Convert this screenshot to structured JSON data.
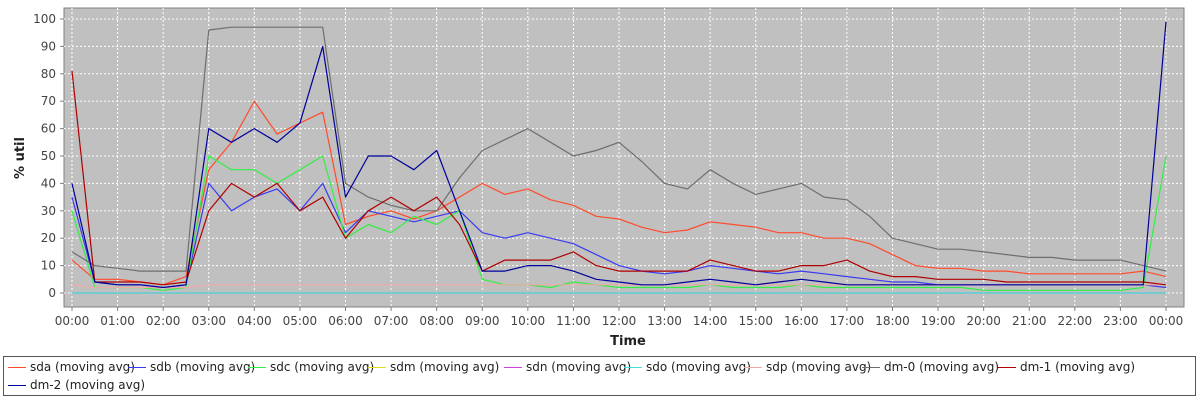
{
  "chart_data": {
    "type": "line",
    "title": "",
    "xlabel": "Time",
    "ylabel": "% util",
    "ylim": [
      0,
      100
    ],
    "yticks": [
      0,
      10,
      20,
      30,
      40,
      50,
      60,
      70,
      80,
      90,
      100
    ],
    "xlim": [
      "00:00",
      "24:00"
    ],
    "x_tick_labels": [
      "00:00",
      "01:00",
      "02:00",
      "03:00",
      "04:00",
      "05:00",
      "06:00",
      "07:00",
      "08:00",
      "09:00",
      "10:00",
      "11:00",
      "12:00",
      "13:00",
      "14:00",
      "15:00",
      "16:00",
      "17:00",
      "18:00",
      "19:00",
      "20:00",
      "21:00",
      "22:00",
      "23:00",
      "00:00"
    ],
    "grid": true,
    "legend_position": "bottom",
    "x": [
      "00:00",
      "00:30",
      "01:00",
      "01:30",
      "02:00",
      "02:30",
      "03:00",
      "03:30",
      "04:00",
      "04:30",
      "05:00",
      "05:30",
      "06:00",
      "06:30",
      "07:00",
      "07:30",
      "08:00",
      "08:30",
      "09:00",
      "09:30",
      "10:00",
      "10:30",
      "11:00",
      "11:30",
      "12:00",
      "12:30",
      "13:00",
      "13:30",
      "14:00",
      "14:30",
      "15:00",
      "15:30",
      "16:00",
      "16:30",
      "17:00",
      "17:30",
      "18:00",
      "18:30",
      "19:00",
      "19:30",
      "20:00",
      "20:30",
      "21:00",
      "21:30",
      "22:00",
      "22:30",
      "23:00",
      "23:30",
      "24:00"
    ],
    "series": [
      {
        "name": "sda (moving avg)",
        "color": "#ff4b2b",
        "values": [
          12,
          5,
          5,
          4,
          3,
          6,
          45,
          55,
          70,
          58,
          62,
          66,
          25,
          28,
          30,
          27,
          30,
          35,
          40,
          36,
          38,
          34,
          32,
          28,
          27,
          24,
          22,
          23,
          26,
          25,
          24,
          22,
          22,
          20,
          20,
          18,
          14,
          10,
          9,
          9,
          8,
          8,
          7,
          7,
          7,
          7,
          7,
          8,
          6
        ]
      },
      {
        "name": "sdb (moving avg)",
        "color": "#3a3af0",
        "values": [
          35,
          4,
          3,
          3,
          2,
          3,
          40,
          30,
          35,
          38,
          30,
          40,
          22,
          30,
          28,
          26,
          28,
          30,
          22,
          20,
          22,
          20,
          18,
          14,
          10,
          8,
          7,
          8,
          10,
          9,
          8,
          7,
          8,
          7,
          6,
          5,
          4,
          4,
          3,
          3,
          3,
          3,
          3,
          3,
          3,
          3,
          3,
          3,
          2
        ]
      },
      {
        "name": "sdc (moving avg)",
        "color": "#33ee44",
        "values": [
          30,
          2,
          2,
          2,
          1,
          2,
          50,
          45,
          45,
          40,
          45,
          50,
          20,
          25,
          22,
          28,
          25,
          30,
          5,
          3,
          3,
          2,
          4,
          3,
          2,
          2,
          2,
          2,
          3,
          2,
          2,
          2,
          3,
          2,
          2,
          2,
          2,
          2,
          2,
          2,
          1,
          1,
          1,
          1,
          1,
          1,
          1,
          2,
          50
        ]
      },
      {
        "name": "sdm (moving avg)",
        "color": "#e0e020",
        "values": [
          0,
          0,
          0,
          0,
          0,
          0,
          0,
          0,
          0,
          0,
          0,
          0,
          0,
          0,
          0,
          0,
          0,
          0,
          0,
          0,
          0,
          0,
          0,
          0,
          0,
          0,
          0,
          0,
          0,
          0,
          0,
          0,
          0,
          0,
          0,
          0,
          0,
          0,
          0,
          0,
          0,
          0,
          0,
          0,
          0,
          0,
          0,
          0,
          0
        ]
      },
      {
        "name": "sdn (moving avg)",
        "color": "#d040e0",
        "values": [
          0,
          0,
          0,
          0,
          0,
          0,
          0,
          0,
          0,
          0,
          0,
          0,
          0,
          0,
          0,
          0,
          0,
          0,
          0,
          0,
          0,
          0,
          0,
          0,
          0,
          0,
          0,
          0,
          0,
          0,
          0,
          0,
          0,
          0,
          0,
          0,
          0,
          0,
          0,
          0,
          0,
          0,
          0,
          0,
          0,
          0,
          0,
          0,
          0
        ]
      },
      {
        "name": "sdo (moving avg)",
        "color": "#40e0e0",
        "values": [
          0,
          0,
          0,
          0,
          0,
          0,
          0,
          0,
          0,
          0,
          0,
          0,
          0,
          0,
          0,
          0,
          0,
          0,
          0,
          0,
          0,
          0,
          0,
          0,
          0,
          0,
          0,
          0,
          0,
          0,
          0,
          0,
          0,
          0,
          0,
          0,
          0,
          0,
          0,
          0,
          0,
          0,
          0,
          0,
          0,
          0,
          0,
          0,
          0
        ]
      },
      {
        "name": "sdp (moving avg)",
        "color": "#f0a8a8",
        "values": [
          3,
          2,
          2,
          2,
          2,
          2,
          3,
          3,
          3,
          3,
          3,
          3,
          3,
          3,
          3,
          3,
          3,
          3,
          3,
          3,
          3,
          3,
          3,
          3,
          3,
          3,
          3,
          3,
          3,
          3,
          3,
          3,
          3,
          3,
          3,
          3,
          3,
          3,
          3,
          3,
          3,
          3,
          3,
          3,
          3,
          3,
          3,
          3,
          3
        ]
      },
      {
        "name": "dm-0 (moving avg)",
        "color": "#6e6e6e",
        "values": [
          15,
          10,
          9,
          8,
          8,
          8,
          96,
          97,
          97,
          97,
          97,
          97,
          40,
          35,
          32,
          30,
          30,
          42,
          52,
          56,
          60,
          55,
          50,
          52,
          55,
          48,
          40,
          38,
          45,
          40,
          36,
          38,
          40,
          35,
          34,
          28,
          20,
          18,
          16,
          16,
          15,
          14,
          13,
          13,
          12,
          12,
          12,
          10,
          8
        ]
      },
      {
        "name": "dm-1 (moving avg)",
        "color": "#b00000",
        "values": [
          81,
          4,
          4,
          4,
          3,
          4,
          30,
          40,
          35,
          40,
          30,
          35,
          20,
          30,
          35,
          30,
          35,
          25,
          8,
          12,
          12,
          12,
          15,
          10,
          8,
          8,
          8,
          8,
          12,
          10,
          8,
          8,
          10,
          10,
          12,
          8,
          6,
          6,
          5,
          5,
          5,
          4,
          4,
          4,
          4,
          4,
          4,
          4,
          3
        ]
      },
      {
        "name": "dm-2 (moving avg)",
        "color": "#00009a",
        "values": [
          40,
          4,
          3,
          3,
          2,
          3,
          60,
          55,
          60,
          55,
          62,
          90,
          35,
          50,
          50,
          45,
          52,
          30,
          8,
          8,
          10,
          10,
          8,
          5,
          4,
          3,
          3,
          4,
          5,
          4,
          3,
          4,
          5,
          4,
          3,
          3,
          3,
          3,
          3,
          3,
          3,
          3,
          3,
          3,
          3,
          3,
          3,
          3,
          99
        ]
      }
    ]
  }
}
